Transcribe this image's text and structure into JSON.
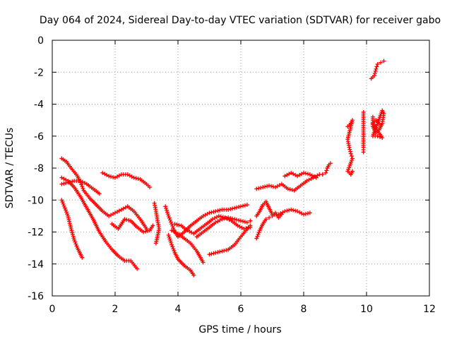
{
  "chart_data": {
    "type": "scatter",
    "title": "Day 064 of 2024, Sidereal Day-to-day VTEC variation (SDTVAR) for receiver gabo",
    "xlabel": "GPS time / hours",
    "ylabel": "SDTVAR / TECUs",
    "xlim": [
      0,
      12
    ],
    "ylim": [
      -16,
      0
    ],
    "xticks": [
      0,
      2,
      4,
      6,
      8,
      10,
      12
    ],
    "yticks": [
      0,
      -2,
      -4,
      -6,
      -8,
      -10,
      -12,
      -14,
      -16
    ],
    "grid": true,
    "legend": "none",
    "marker": "+",
    "color": "#ff0000",
    "series": [
      {
        "points": [
          [
            0.3,
            -7.4
          ],
          [
            0.45,
            -7.6
          ],
          [
            0.6,
            -8.0
          ],
          [
            0.8,
            -8.5
          ],
          [
            0.9,
            -8.9
          ],
          [
            1.0,
            -9.4
          ],
          [
            1.2,
            -9.9
          ],
          [
            1.4,
            -10.3
          ],
          [
            1.6,
            -10.7
          ],
          [
            1.8,
            -11.0
          ],
          [
            2.0,
            -10.8
          ],
          [
            2.2,
            -10.6
          ],
          [
            2.4,
            -10.4
          ],
          [
            2.6,
            -10.7
          ],
          [
            2.8,
            -11.2
          ],
          [
            3.0,
            -11.8
          ]
        ]
      },
      {
        "points": [
          [
            0.3,
            -8.6
          ],
          [
            0.5,
            -8.8
          ],
          [
            0.7,
            -9.2
          ],
          [
            0.9,
            -9.8
          ],
          [
            1.1,
            -10.5
          ],
          [
            1.3,
            -11.2
          ],
          [
            1.5,
            -12.0
          ],
          [
            1.7,
            -12.6
          ],
          [
            1.9,
            -13.1
          ],
          [
            2.1,
            -13.5
          ],
          [
            2.3,
            -13.8
          ],
          [
            2.5,
            -13.8
          ],
          [
            2.7,
            -14.3
          ]
        ]
      },
      {
        "points": [
          [
            0.3,
            -10.0
          ],
          [
            0.4,
            -10.5
          ],
          [
            0.5,
            -11.0
          ],
          [
            0.6,
            -11.8
          ],
          [
            0.7,
            -12.5
          ],
          [
            0.8,
            -13.0
          ],
          [
            0.9,
            -13.4
          ],
          [
            0.95,
            -13.6
          ]
        ]
      },
      {
        "points": [
          [
            0.3,
            -9.0
          ],
          [
            0.5,
            -8.9
          ],
          [
            0.7,
            -8.8
          ],
          [
            0.9,
            -8.8
          ],
          [
            1.1,
            -9.0
          ],
          [
            1.3,
            -9.3
          ],
          [
            1.5,
            -9.6
          ]
        ]
      },
      {
        "points": [
          [
            1.6,
            -8.3
          ],
          [
            1.8,
            -8.5
          ],
          [
            2.0,
            -8.6
          ],
          [
            2.2,
            -8.4
          ],
          [
            2.4,
            -8.4
          ],
          [
            2.6,
            -8.6
          ],
          [
            2.8,
            -8.7
          ],
          [
            3.0,
            -9.0
          ],
          [
            3.1,
            -9.2
          ]
        ]
      },
      {
        "points": [
          [
            1.9,
            -11.5
          ],
          [
            2.1,
            -11.8
          ],
          [
            2.3,
            -11.2
          ],
          [
            2.5,
            -11.3
          ],
          [
            2.7,
            -11.7
          ],
          [
            2.9,
            -12.0
          ],
          [
            3.1,
            -11.9
          ],
          [
            3.2,
            -11.6
          ]
        ]
      },
      {
        "points": [
          [
            3.25,
            -10.2
          ],
          [
            3.3,
            -10.7
          ],
          [
            3.35,
            -11.3
          ],
          [
            3.4,
            -11.8
          ],
          [
            3.3,
            -12.7
          ]
        ]
      },
      {
        "points": [
          [
            3.6,
            -10.4
          ],
          [
            3.7,
            -11.0
          ],
          [
            3.8,
            -11.5
          ],
          [
            3.9,
            -12.0
          ],
          [
            4.0,
            -12.3
          ],
          [
            4.2,
            -12.0
          ],
          [
            4.4,
            -11.6
          ],
          [
            4.6,
            -11.3
          ],
          [
            4.8,
            -11.0
          ],
          [
            5.0,
            -10.8
          ],
          [
            5.2,
            -10.7
          ],
          [
            5.4,
            -10.6
          ],
          [
            5.6,
            -10.6
          ],
          [
            5.8,
            -10.5
          ],
          [
            6.0,
            -10.4
          ],
          [
            6.2,
            -10.3
          ]
        ]
      },
      {
        "points": [
          [
            3.7,
            -12.2
          ],
          [
            3.8,
            -12.8
          ],
          [
            3.9,
            -13.3
          ],
          [
            4.0,
            -13.7
          ],
          [
            4.2,
            -14.1
          ],
          [
            4.4,
            -14.4
          ],
          [
            4.5,
            -14.7
          ]
        ]
      },
      {
        "points": [
          [
            3.8,
            -11.9
          ],
          [
            4.0,
            -12.1
          ],
          [
            4.2,
            -12.4
          ],
          [
            4.4,
            -12.7
          ],
          [
            4.6,
            -13.2
          ],
          [
            4.8,
            -13.9
          ]
        ]
      },
      {
        "points": [
          [
            3.9,
            -11.5
          ],
          [
            4.1,
            -11.6
          ],
          [
            4.3,
            -11.9
          ],
          [
            4.5,
            -12.1
          ],
          [
            4.7,
            -11.8
          ],
          [
            4.9,
            -11.5
          ],
          [
            5.1,
            -11.2
          ],
          [
            5.3,
            -11.0
          ],
          [
            5.5,
            -11.1
          ],
          [
            5.7,
            -11.3
          ],
          [
            5.9,
            -11.6
          ],
          [
            6.1,
            -11.8
          ],
          [
            6.3,
            -11.7
          ]
        ]
      },
      {
        "points": [
          [
            4.6,
            -12.3
          ],
          [
            4.8,
            -12.0
          ],
          [
            5.0,
            -11.7
          ],
          [
            5.2,
            -11.4
          ],
          [
            5.4,
            -11.2
          ],
          [
            5.6,
            -11.1
          ],
          [
            5.8,
            -11.2
          ],
          [
            6.0,
            -11.3
          ],
          [
            6.2,
            -11.4
          ],
          [
            6.3,
            -11.3
          ]
        ]
      },
      {
        "points": [
          [
            5.0,
            -13.4
          ],
          [
            5.2,
            -13.3
          ],
          [
            5.4,
            -13.2
          ],
          [
            5.6,
            -13.1
          ],
          [
            5.8,
            -12.8
          ],
          [
            6.0,
            -12.3
          ],
          [
            6.2,
            -11.8
          ],
          [
            6.3,
            -11.6
          ]
        ]
      },
      {
        "points": [
          [
            6.5,
            -9.3
          ],
          [
            6.7,
            -9.2
          ],
          [
            6.9,
            -9.1
          ],
          [
            7.1,
            -9.2
          ],
          [
            7.3,
            -9.0
          ],
          [
            7.5,
            -9.3
          ],
          [
            7.7,
            -9.4
          ],
          [
            7.9,
            -9.1
          ],
          [
            8.1,
            -8.8
          ],
          [
            8.3,
            -8.6
          ],
          [
            8.5,
            -8.4
          ],
          [
            8.6,
            -8.4
          ]
        ]
      },
      {
        "points": [
          [
            7.4,
            -8.5
          ],
          [
            7.6,
            -8.3
          ],
          [
            7.8,
            -8.5
          ],
          [
            8.0,
            -8.3
          ],
          [
            8.2,
            -8.4
          ],
          [
            8.4,
            -8.6
          ]
        ]
      },
      {
        "points": [
          [
            6.5,
            -11.0
          ],
          [
            6.6,
            -10.7
          ],
          [
            6.7,
            -10.3
          ],
          [
            6.8,
            -10.1
          ],
          [
            6.9,
            -10.5
          ],
          [
            7.0,
            -10.9
          ],
          [
            7.2,
            -10.9
          ],
          [
            7.4,
            -10.7
          ],
          [
            7.6,
            -10.6
          ],
          [
            7.8,
            -10.7
          ],
          [
            8.0,
            -10.9
          ],
          [
            8.2,
            -10.8
          ]
        ]
      },
      {
        "points": [
          [
            6.5,
            -12.4
          ],
          [
            6.6,
            -11.9
          ],
          [
            6.7,
            -11.5
          ],
          [
            6.8,
            -11.2
          ],
          [
            6.9,
            -11.1
          ],
          [
            7.0,
            -11.0
          ],
          [
            7.1,
            -10.8
          ],
          [
            7.2,
            -11.1
          ],
          [
            7.3,
            -10.9
          ]
        ]
      },
      {
        "points": [
          [
            8.7,
            -8.3
          ],
          [
            8.75,
            -8.0
          ],
          [
            8.8,
            -7.8
          ],
          [
            8.85,
            -7.7
          ]
        ]
      },
      {
        "points": [
          [
            9.4,
            -5.4
          ],
          [
            9.5,
            -5.2
          ],
          [
            9.55,
            -5.0
          ],
          [
            9.4,
            -6.2
          ],
          [
            9.45,
            -6.7
          ],
          [
            9.5,
            -7.1
          ],
          [
            9.55,
            -7.4
          ],
          [
            9.4,
            -8.2
          ],
          [
            9.5,
            -8.4
          ],
          [
            9.55,
            -8.2
          ],
          [
            9.9,
            -4.5
          ],
          [
            9.9,
            -5.8
          ],
          [
            9.9,
            -6.7
          ],
          [
            9.9,
            -7.0
          ]
        ]
      },
      {
        "points": [
          [
            10.15,
            -2.4
          ],
          [
            10.25,
            -2.2
          ],
          [
            10.3,
            -1.8
          ],
          [
            10.35,
            -1.5
          ],
          [
            10.45,
            -1.4
          ],
          [
            10.55,
            -1.3
          ],
          [
            10.2,
            -4.8
          ],
          [
            10.2,
            -5.4
          ],
          [
            10.3,
            -5.8
          ],
          [
            10.4,
            -5.6
          ],
          [
            10.5,
            -5.2
          ],
          [
            10.55,
            -4.6
          ],
          [
            10.5,
            -4.4
          ],
          [
            10.2,
            -6.0
          ],
          [
            10.35,
            -6.0
          ],
          [
            10.5,
            -6.1
          ],
          [
            10.2,
            -5.2
          ],
          [
            10.3,
            -5.0
          ],
          [
            10.45,
            -5.3
          ]
        ]
      }
    ]
  }
}
